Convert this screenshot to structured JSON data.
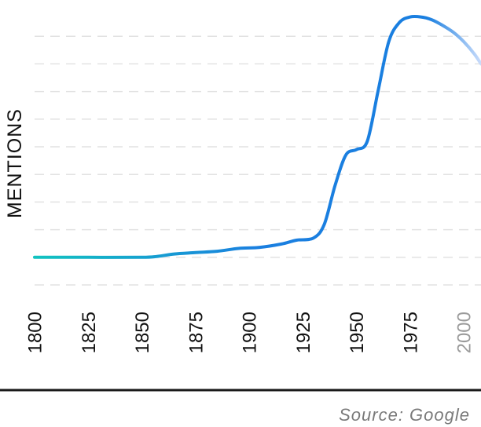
{
  "chart_data": {
    "type": "line",
    "title": "",
    "xlabel": "",
    "ylabel": "MENTIONS",
    "xlim": [
      1800,
      2008
    ],
    "ylim": [
      -1,
      9
    ],
    "grid": true,
    "x_ticks": [
      {
        "value": 1800,
        "label": "1800",
        "faded": false
      },
      {
        "value": 1825,
        "label": "1825",
        "faded": false
      },
      {
        "value": 1850,
        "label": "1850",
        "faded": false
      },
      {
        "value": 1875,
        "label": "1875",
        "faded": false
      },
      {
        "value": 1900,
        "label": "1900",
        "faded": false
      },
      {
        "value": 1925,
        "label": "1925",
        "faded": false
      },
      {
        "value": 1950,
        "label": "1950",
        "faded": false
      },
      {
        "value": 1975,
        "label": "1975",
        "faded": false
      },
      {
        "value": 2000,
        "label": "2000",
        "faded": true
      }
    ],
    "series": [
      {
        "x": [
          1800,
          1825,
          1850,
          1857,
          1865,
          1875,
          1885,
          1895,
          1905,
          1915,
          1922,
          1930,
          1935,
          1940,
          1945,
          1950,
          1955,
          1960,
          1965,
          1970,
          1975,
          1980,
          1985,
          1990,
          1995,
          2000,
          2005,
          2008
        ],
        "y": [
          0,
          0,
          0,
          0.03,
          0.12,
          0.17,
          0.22,
          0.32,
          0.36,
          0.48,
          0.62,
          0.7,
          1.2,
          2.6,
          3.7,
          3.9,
          4.2,
          6.0,
          7.8,
          8.5,
          8.7,
          8.7,
          8.6,
          8.4,
          8.15,
          7.8,
          7.35,
          7.0
        ],
        "color_start": "#12c3c0",
        "color_mid": "#1a7fe0",
        "color_end": "#c9dcfb"
      }
    ],
    "source": "Source: Google"
  }
}
